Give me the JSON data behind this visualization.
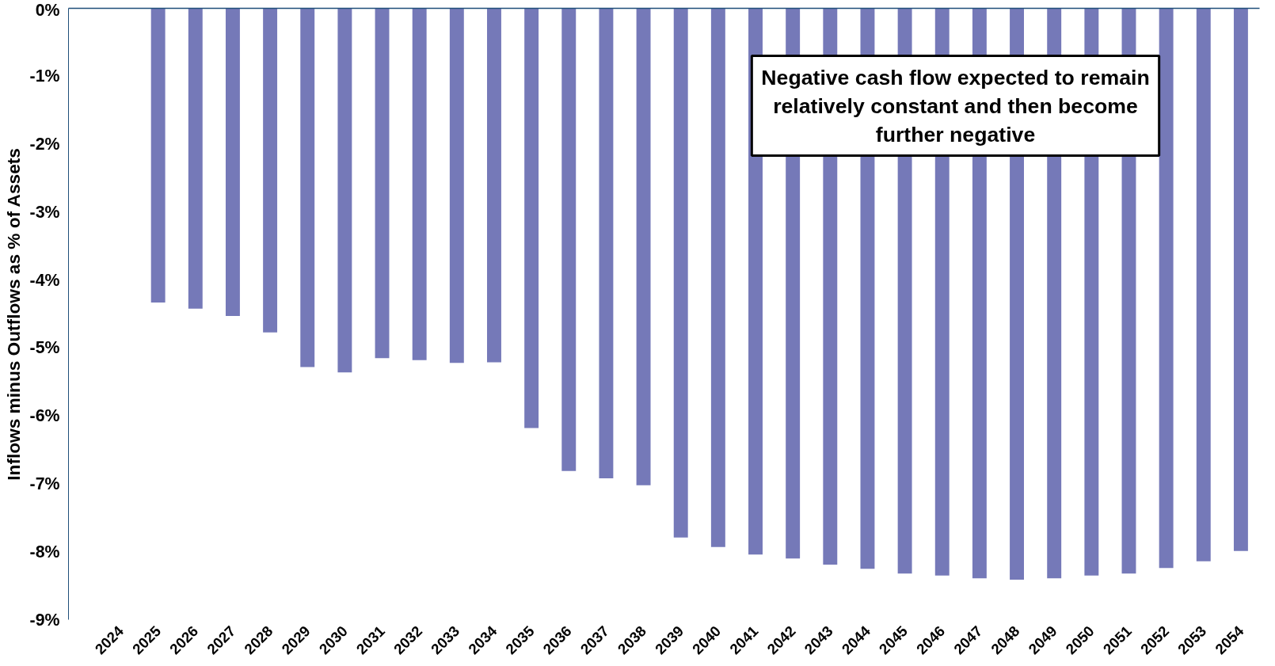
{
  "chart_data": {
    "type": "bar",
    "ylabel": "Inflows minus Outflows as % of Assets",
    "categories": [
      "2024",
      "2025",
      "2026",
      "2027",
      "2028",
      "2029",
      "2030",
      "2031",
      "2032",
      "2033",
      "2034",
      "2035",
      "2036",
      "2037",
      "2038",
      "2039",
      "2040",
      "2041",
      "2042",
      "2043",
      "2044",
      "2045",
      "2046",
      "2047",
      "2048",
      "2049",
      "2050",
      "2051",
      "2052",
      "2053",
      "2054"
    ],
    "values": [
      null,
      -4.33,
      -4.42,
      -4.53,
      -4.77,
      -5.28,
      -5.36,
      -5.15,
      -5.18,
      -5.22,
      -5.21,
      -6.18,
      -6.81,
      -6.92,
      -7.02,
      -7.79,
      -7.93,
      -8.04,
      -8.1,
      -8.19,
      -8.25,
      -8.32,
      -8.35,
      -8.39,
      -8.41,
      -8.39,
      -8.35,
      -8.32,
      -8.24,
      -8.14,
      -7.99
    ],
    "color": "#7579b8",
    "ylim": [
      -9,
      0
    ],
    "yticks": [
      {
        "value": 0,
        "label": "0%"
      },
      {
        "value": -1,
        "label": "-1%"
      },
      {
        "value": -2,
        "label": "-2%"
      },
      {
        "value": -3,
        "label": "-3%"
      },
      {
        "value": -4,
        "label": "-4%"
      },
      {
        "value": -5,
        "label": "-5%"
      },
      {
        "value": -6,
        "label": "-6%"
      },
      {
        "value": -7,
        "label": "-7%"
      },
      {
        "value": -8,
        "label": "-8%"
      },
      {
        "value": -9,
        "label": "-9%"
      }
    ],
    "annotations": [
      "Negative cash flow expected to remain relatively constant and then become further negative"
    ],
    "grid": false
  }
}
